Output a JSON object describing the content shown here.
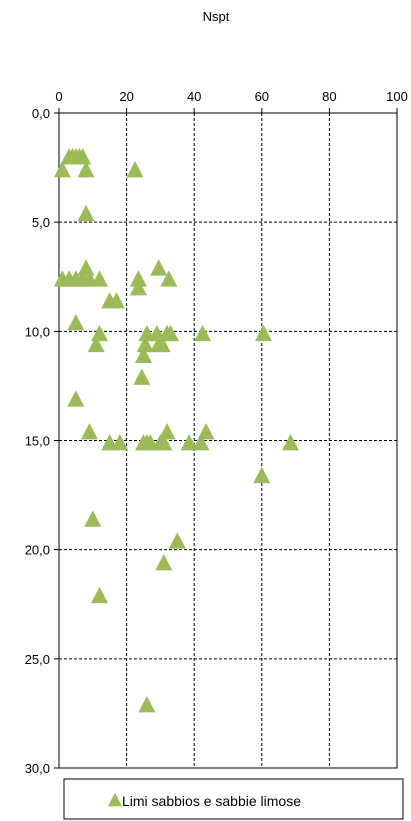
{
  "chart_data": {
    "type": "scatter",
    "title": "Nspt",
    "xlabel": "",
    "ylabel": "",
    "x_axis_position": "top",
    "y_axis_inverted": true,
    "xlim": [
      0,
      100
    ],
    "ylim": [
      0,
      30
    ],
    "x_ticks": [
      "0",
      "20",
      "40",
      "60",
      "80",
      "100"
    ],
    "y_ticks": [
      "0,0",
      "5,0",
      "10,0",
      "15,0",
      "20,0",
      "25,0",
      "30,0"
    ],
    "grid": true,
    "legend_position": "bottom",
    "series": [
      {
        "name": "Limi sabbios e sabbie limose",
        "color": "#9bbb59",
        "marker": "triangle",
        "points": [
          [
            1,
            2.6
          ],
          [
            3,
            2.0
          ],
          [
            4,
            2.0
          ],
          [
            5,
            2.0
          ],
          [
            6,
            2.0
          ],
          [
            7,
            2.0
          ],
          [
            8,
            2.6
          ],
          [
            22.5,
            2.6
          ],
          [
            8,
            4.6
          ],
          [
            1,
            7.6
          ],
          [
            3,
            7.6
          ],
          [
            5,
            7.6
          ],
          [
            7,
            7.6
          ],
          [
            8,
            7.1
          ],
          [
            9,
            7.6
          ],
          [
            12,
            7.6
          ],
          [
            23.5,
            7.6
          ],
          [
            23.5,
            8.0
          ],
          [
            29.5,
            7.1
          ],
          [
            32.5,
            7.6
          ],
          [
            15,
            8.6
          ],
          [
            17,
            8.6
          ],
          [
            5,
            9.6
          ],
          [
            12,
            10.1
          ],
          [
            11,
            10.6
          ],
          [
            26,
            10.1
          ],
          [
            29,
            10.1
          ],
          [
            32,
            10.1
          ],
          [
            33,
            10.1
          ],
          [
            25.5,
            10.6
          ],
          [
            29.5,
            10.6
          ],
          [
            30.5,
            10.6
          ],
          [
            42.5,
            10.1
          ],
          [
            60.5,
            10.1
          ],
          [
            25,
            11.1
          ],
          [
            24.5,
            12.1
          ],
          [
            5,
            13.1
          ],
          [
            9,
            14.6
          ],
          [
            15,
            15.1
          ],
          [
            18,
            15.1
          ],
          [
            25,
            15.1
          ],
          [
            26,
            15.1
          ],
          [
            27,
            15.1
          ],
          [
            30,
            15.1
          ],
          [
            31,
            15.1
          ],
          [
            32,
            14.6
          ],
          [
            38.5,
            15.1
          ],
          [
            42,
            15.1
          ],
          [
            43.5,
            14.6
          ],
          [
            68.5,
            15.1
          ],
          [
            60,
            16.6
          ],
          [
            10,
            18.6
          ],
          [
            35,
            19.6
          ],
          [
            31,
            20.6
          ],
          [
            12,
            22.1
          ],
          [
            26,
            27.1
          ]
        ]
      }
    ]
  }
}
